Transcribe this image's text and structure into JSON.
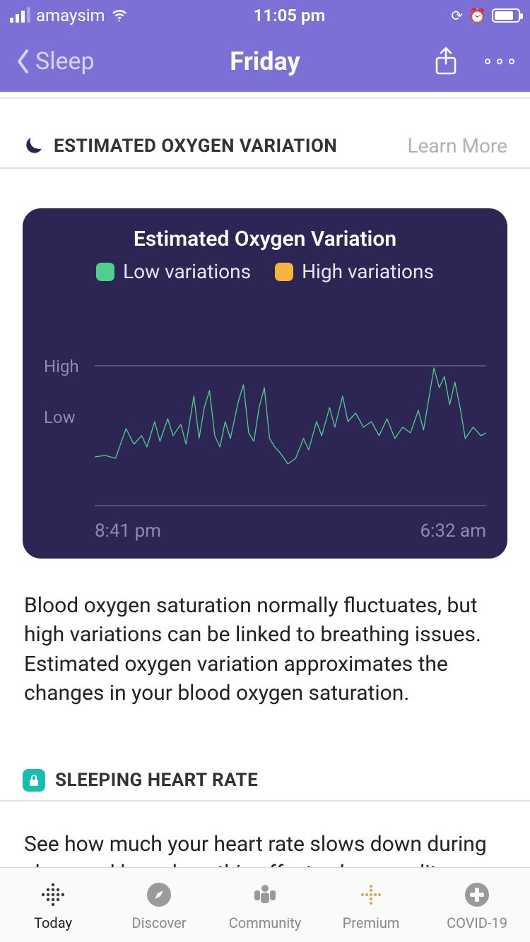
{
  "status": {
    "carrier": "amaysim",
    "time": "11:05 pm"
  },
  "nav": {
    "back_label": "Sleep",
    "title": "Friday"
  },
  "colors": {
    "nav_bg": "#7b70d6",
    "card_bg": "#2d2654",
    "low_swatch": "#4fcf8f",
    "high_swatch": "#f4b63f",
    "line_color": "#4fcf8f",
    "grid_color": "#585077",
    "axis_text": "#8e89ad"
  },
  "oxygen": {
    "section_title": "ESTIMATED OXYGEN VARIATION",
    "learn_more": "Learn More",
    "card_title": "Estimated Oxygen Variation",
    "legend_low": "Low variations",
    "legend_high": "High variations",
    "y_high": "High",
    "y_low": "Low",
    "x_start": "8:41 pm",
    "x_end": "6:32 am",
    "chart": {
      "type": "line",
      "ylim": [
        0,
        100
      ],
      "high_threshold": 100,
      "low_threshold": 62,
      "points": [
        [
          0,
          35
        ],
        [
          4,
          36
        ],
        [
          8,
          34
        ],
        [
          12,
          55
        ],
        [
          15,
          44
        ],
        [
          18,
          50
        ],
        [
          20,
          42
        ],
        [
          23,
          60
        ],
        [
          25,
          46
        ],
        [
          28,
          62
        ],
        [
          30,
          50
        ],
        [
          33,
          58
        ],
        [
          35,
          44
        ],
        [
          38,
          78
        ],
        [
          40,
          48
        ],
        [
          42,
          70
        ],
        [
          44,
          82
        ],
        [
          46,
          50
        ],
        [
          48,
          42
        ],
        [
          50,
          60
        ],
        [
          52,
          48
        ],
        [
          55,
          74
        ],
        [
          57,
          86
        ],
        [
          59,
          52
        ],
        [
          61,
          46
        ],
        [
          63,
          70
        ],
        [
          65,
          84
        ],
        [
          67,
          48
        ],
        [
          69,
          42
        ],
        [
          71,
          38
        ],
        [
          74,
          30
        ],
        [
          77,
          34
        ],
        [
          80,
          48
        ],
        [
          82,
          40
        ],
        [
          85,
          60
        ],
        [
          87,
          50
        ],
        [
          90,
          70
        ],
        [
          92,
          56
        ],
        [
          95,
          78
        ],
        [
          97,
          60
        ],
        [
          100,
          66
        ],
        [
          103,
          56
        ],
        [
          106,
          60
        ],
        [
          109,
          50
        ],
        [
          112,
          62
        ],
        [
          115,
          48
        ],
        [
          118,
          56
        ],
        [
          121,
          52
        ],
        [
          124,
          68
        ],
        [
          126,
          54
        ],
        [
          130,
          98
        ],
        [
          132,
          84
        ],
        [
          134,
          92
        ],
        [
          136,
          72
        ],
        [
          138,
          88
        ],
        [
          140,
          70
        ],
        [
          142,
          48
        ],
        [
          145,
          56
        ],
        [
          148,
          50
        ],
        [
          150,
          52
        ]
      ]
    },
    "body": "Blood oxygen saturation normally fluctuates, but high variations can be linked to breathing issues. Estimated oxygen variation approximates the changes in your blood oxygen saturation."
  },
  "heart_rate": {
    "section_title": "SLEEPING HEART RATE",
    "body": "See how much your heart rate slows down during sleep and learn how this affects sleep quality."
  },
  "tabs": {
    "today": "Today",
    "discover": "Discover",
    "community": "Community",
    "premium": "Premium",
    "covid": "COVID-19"
  }
}
